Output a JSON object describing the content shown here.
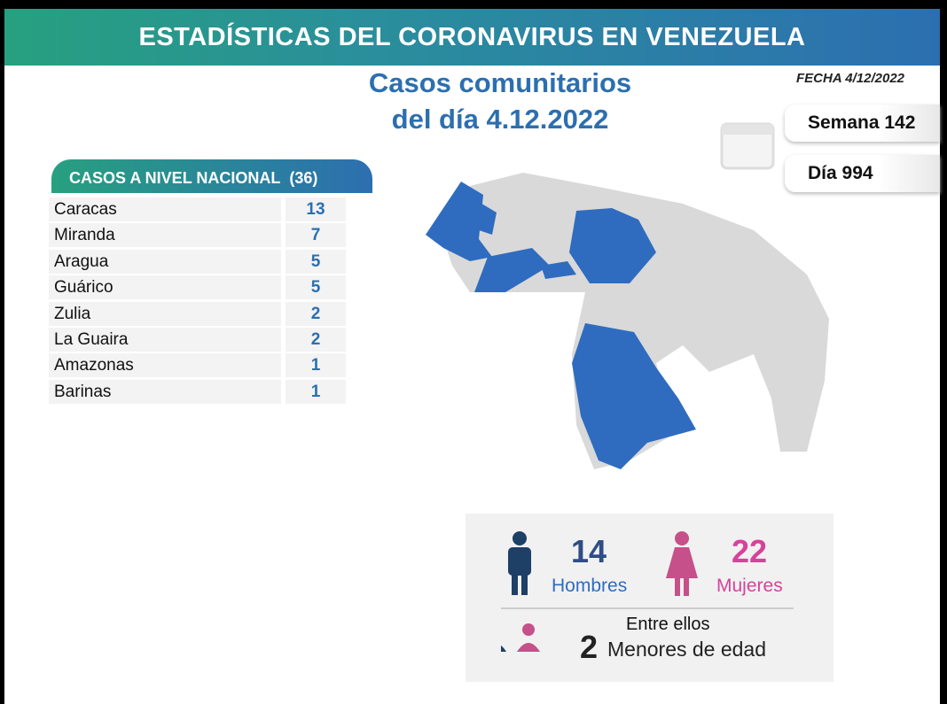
{
  "header": {
    "title": "ESTADÍSTICAS DEL CORONAVIRUS EN VENEZUELA",
    "date": "FECHA 4/12/2022"
  },
  "subtitle": {
    "line1": "Casos comunitarios",
    "line2": "del día 4.12.2022"
  },
  "week": "Semana 142",
  "day": "Día 994",
  "table": {
    "title": "CASOS A NIVEL NACIONAL",
    "total": "(36)",
    "rows": [
      [
        "Caracas",
        13
      ],
      [
        "Miranda",
        7
      ],
      [
        "Aragua",
        5
      ],
      [
        "Guárico",
        5
      ],
      [
        "Zulia",
        2
      ],
      [
        "La Guaira",
        2
      ],
      [
        "Amazonas",
        1
      ],
      [
        "Barinas",
        1
      ]
    ]
  },
  "gender": {
    "men": {
      "count": 14,
      "label": "Hombres"
    },
    "women": {
      "count": 22,
      "label": "Mujeres"
    }
  },
  "minors": {
    "intro": "Entre ellos",
    "count": 2,
    "label": "Menores de edad"
  }
}
